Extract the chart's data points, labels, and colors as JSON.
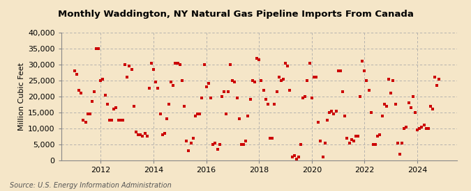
{
  "title": "Monthly Waddington, NY Natural Gas Pipeline Imports From Canada",
  "ylabel": "Million Cubic Feet",
  "source": "Source: U.S. Energy Information Administration",
  "background_color": "#f5e6c8",
  "plot_bg_color": "#f5e6c8",
  "dot_color": "#cc0000",
  "ylim": [
    0,
    40000
  ],
  "yticks": [
    0,
    5000,
    10000,
    15000,
    20000,
    25000,
    30000,
    35000,
    40000
  ],
  "xlim_start": 2010.5,
  "xlim_end": 2025.5,
  "xticks": [
    2012,
    2014,
    2016,
    2018,
    2020,
    2022,
    2024
  ],
  "data_points": [
    [
      2011.0,
      28000
    ],
    [
      2011.08,
      27000
    ],
    [
      2011.17,
      22000
    ],
    [
      2011.25,
      21000
    ],
    [
      2011.33,
      12500
    ],
    [
      2011.42,
      12000
    ],
    [
      2011.5,
      14500
    ],
    [
      2011.58,
      14500
    ],
    [
      2011.67,
      18500
    ],
    [
      2011.75,
      21500
    ],
    [
      2011.83,
      35000
    ],
    [
      2011.92,
      35000
    ],
    [
      2012.0,
      25000
    ],
    [
      2012.08,
      25500
    ],
    [
      2012.17,
      20500
    ],
    [
      2012.25,
      17500
    ],
    [
      2012.33,
      12500
    ],
    [
      2012.42,
      12500
    ],
    [
      2012.5,
      16000
    ],
    [
      2012.58,
      16500
    ],
    [
      2012.67,
      12500
    ],
    [
      2012.75,
      12500
    ],
    [
      2012.83,
      12500
    ],
    [
      2012.92,
      30000
    ],
    [
      2013.0,
      26000
    ],
    [
      2013.08,
      29500
    ],
    [
      2013.17,
      28500
    ],
    [
      2013.25,
      17000
    ],
    [
      2013.33,
      9000
    ],
    [
      2013.42,
      8000
    ],
    [
      2013.5,
      8000
    ],
    [
      2013.58,
      7500
    ],
    [
      2013.67,
      8500
    ],
    [
      2013.75,
      7500
    ],
    [
      2013.83,
      22500
    ],
    [
      2013.92,
      30500
    ],
    [
      2014.0,
      28500
    ],
    [
      2014.08,
      24500
    ],
    [
      2014.17,
      22500
    ],
    [
      2014.25,
      14500
    ],
    [
      2014.33,
      8000
    ],
    [
      2014.42,
      8500
    ],
    [
      2014.5,
      13000
    ],
    [
      2014.58,
      17500
    ],
    [
      2014.67,
      24500
    ],
    [
      2014.75,
      23500
    ],
    [
      2014.83,
      30500
    ],
    [
      2014.92,
      30500
    ],
    [
      2015.0,
      30000
    ],
    [
      2015.08,
      25000
    ],
    [
      2015.17,
      17000
    ],
    [
      2015.25,
      6000
    ],
    [
      2015.33,
      3000
    ],
    [
      2015.42,
      5500
    ],
    [
      2015.5,
      7000
    ],
    [
      2015.58,
      14000
    ],
    [
      2015.67,
      14500
    ],
    [
      2015.75,
      14500
    ],
    [
      2015.83,
      19500
    ],
    [
      2015.92,
      30000
    ],
    [
      2016.0,
      23000
    ],
    [
      2016.08,
      24000
    ],
    [
      2016.17,
      19500
    ],
    [
      2016.25,
      5000
    ],
    [
      2016.33,
      5500
    ],
    [
      2016.42,
      3500
    ],
    [
      2016.5,
      5000
    ],
    [
      2016.58,
      20000
    ],
    [
      2016.67,
      21500
    ],
    [
      2016.75,
      14500
    ],
    [
      2016.83,
      21500
    ],
    [
      2016.92,
      30000
    ],
    [
      2017.0,
      25000
    ],
    [
      2017.08,
      24500
    ],
    [
      2017.17,
      19500
    ],
    [
      2017.25,
      13000
    ],
    [
      2017.33,
      5000
    ],
    [
      2017.42,
      5000
    ],
    [
      2017.5,
      6000
    ],
    [
      2017.58,
      14000
    ],
    [
      2017.67,
      19000
    ],
    [
      2017.75,
      25000
    ],
    [
      2017.83,
      24500
    ],
    [
      2017.92,
      32000
    ],
    [
      2018.0,
      31500
    ],
    [
      2018.08,
      25000
    ],
    [
      2018.17,
      22000
    ],
    [
      2018.25,
      19000
    ],
    [
      2018.33,
      17500
    ],
    [
      2018.42,
      7000
    ],
    [
      2018.5,
      7000
    ],
    [
      2018.58,
      17500
    ],
    [
      2018.67,
      21500
    ],
    [
      2018.75,
      26000
    ],
    [
      2018.83,
      25000
    ],
    [
      2018.92,
      25500
    ],
    [
      2019.0,
      30500
    ],
    [
      2019.08,
      29500
    ],
    [
      2019.17,
      22000
    ],
    [
      2019.25,
      1000
    ],
    [
      2019.33,
      1500
    ],
    [
      2019.42,
      500
    ],
    [
      2019.5,
      1000
    ],
    [
      2019.58,
      5000
    ],
    [
      2019.67,
      19500
    ],
    [
      2019.75,
      20000
    ],
    [
      2019.83,
      25000
    ],
    [
      2019.92,
      30500
    ],
    [
      2020.0,
      19500
    ],
    [
      2020.08,
      26000
    ],
    [
      2020.17,
      26000
    ],
    [
      2020.25,
      12000
    ],
    [
      2020.33,
      6000
    ],
    [
      2020.42,
      1000
    ],
    [
      2020.5,
      5500
    ],
    [
      2020.58,
      12500
    ],
    [
      2020.67,
      15000
    ],
    [
      2020.75,
      15500
    ],
    [
      2020.83,
      14500
    ],
    [
      2020.92,
      15500
    ],
    [
      2021.0,
      28000
    ],
    [
      2021.08,
      28000
    ],
    [
      2021.17,
      21500
    ],
    [
      2021.25,
      14000
    ],
    [
      2021.33,
      7000
    ],
    [
      2021.42,
      5500
    ],
    [
      2021.5,
      6500
    ],
    [
      2021.58,
      6000
    ],
    [
      2021.67,
      7500
    ],
    [
      2021.75,
      7500
    ],
    [
      2021.83,
      20000
    ],
    [
      2021.92,
      31000
    ],
    [
      2022.0,
      28000
    ],
    [
      2022.08,
      25000
    ],
    [
      2022.17,
      22000
    ],
    [
      2022.25,
      15000
    ],
    [
      2022.33,
      5000
    ],
    [
      2022.42,
      5000
    ],
    [
      2022.5,
      7500
    ],
    [
      2022.58,
      8000
    ],
    [
      2022.67,
      14000
    ],
    [
      2022.75,
      17500
    ],
    [
      2022.83,
      17000
    ],
    [
      2022.92,
      25500
    ],
    [
      2023.0,
      21000
    ],
    [
      2023.08,
      25000
    ],
    [
      2023.17,
      17500
    ],
    [
      2023.25,
      5500
    ],
    [
      2023.33,
      2000
    ],
    [
      2023.42,
      5500
    ],
    [
      2023.5,
      10000
    ],
    [
      2023.58,
      10500
    ],
    [
      2023.67,
      18000
    ],
    [
      2023.75,
      16500
    ],
    [
      2023.83,
      20000
    ],
    [
      2023.92,
      15000
    ],
    [
      2024.0,
      9500
    ],
    [
      2024.08,
      10000
    ],
    [
      2024.17,
      10500
    ],
    [
      2024.25,
      11000
    ],
    [
      2024.33,
      10000
    ],
    [
      2024.42,
      10000
    ],
    [
      2024.5,
      17000
    ],
    [
      2024.58,
      16000
    ],
    [
      2024.67,
      26000
    ],
    [
      2024.75,
      23500
    ],
    [
      2024.83,
      25500
    ]
  ]
}
